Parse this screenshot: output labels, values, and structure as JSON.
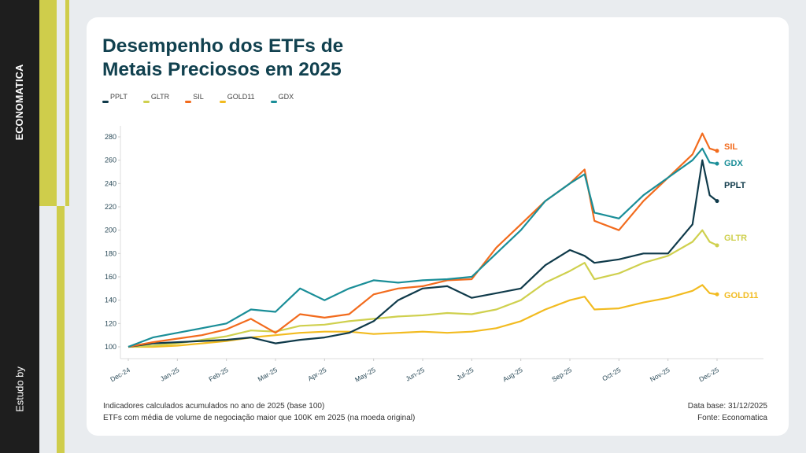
{
  "sidebar": {
    "brand": "ECONOMATICA",
    "credit": "Estudo by",
    "accent": "#cfcd4b"
  },
  "header": {
    "title_line1": "Desempenho dos ETFs de",
    "title_line2": "Metais Preciosos em 2025"
  },
  "footer": {
    "note1": "Indicadores calculados acumulados no ano de 2025 (base 100)",
    "note2": "ETFs com média de volume de negociação maior que 100K em 2025 (na moeda original)",
    "date": "Data base: 31/12/2025",
    "source": "Fonte: Economatica"
  },
  "chart_data": {
    "type": "line",
    "title": "Desempenho dos ETFs de Metais Preciosos em 2025",
    "xlabel": "",
    "ylabel": "",
    "ylim": [
      90,
      290
    ],
    "yticks": [
      100,
      120,
      140,
      160,
      180,
      200,
      220,
      240,
      260,
      280
    ],
    "x_tick_labels": [
      "Dec-24",
      "Jan-25",
      "Feb-25",
      "Mar-25",
      "Apr-25",
      "May-25",
      "Jun-25",
      "Jul-25",
      "Aug-25",
      "Sep-25",
      "Oct-25",
      "Nov-25",
      "Dec-25"
    ],
    "x": [
      0,
      0.5,
      1,
      1.5,
      2,
      2.5,
      3,
      3.5,
      4,
      4.5,
      5,
      5.5,
      6,
      6.5,
      7,
      7.5,
      8,
      8.5,
      9,
      9.3,
      9.5,
      10,
      10.5,
      11,
      11.5,
      11.7,
      11.85,
      12
    ],
    "legend_position": "top-left",
    "grid": false,
    "series": [
      {
        "name": "PPLT",
        "color": "#0f3a4a",
        "values": [
          100,
          103,
          104,
          105,
          106,
          108,
          103,
          106,
          108,
          112,
          122,
          140,
          150,
          152,
          142,
          146,
          150,
          170,
          183,
          178,
          172,
          175,
          180,
          180,
          205,
          260,
          230,
          225
        ]
      },
      {
        "name": "GLTR",
        "color": "#cfd04e",
        "values": [
          100,
          101,
          103,
          106,
          109,
          114,
          113,
          118,
          119,
          122,
          124,
          126,
          127,
          129,
          128,
          132,
          140,
          155,
          165,
          172,
          158,
          163,
          172,
          178,
          190,
          200,
          190,
          187
        ]
      },
      {
        "name": "SIL",
        "color": "#f26b1d",
        "values": [
          100,
          104,
          107,
          110,
          115,
          124,
          112,
          128,
          125,
          128,
          145,
          150,
          152,
          157,
          158,
          185,
          205,
          225,
          240,
          252,
          208,
          200,
          225,
          245,
          265,
          283,
          270,
          268
        ]
      },
      {
        "name": "GOLD11",
        "color": "#f2bb20",
        "values": [
          100,
          100,
          101,
          103,
          105,
          108,
          110,
          112,
          113,
          113,
          111,
          112,
          113,
          112,
          113,
          116,
          122,
          132,
          140,
          143,
          132,
          133,
          138,
          142,
          148,
          153,
          146,
          145
        ]
      },
      {
        "name": "GDX",
        "color": "#1a8e98",
        "values": [
          100,
          108,
          112,
          116,
          120,
          132,
          130,
          150,
          140,
          150,
          157,
          155,
          157,
          158,
          160,
          180,
          200,
          225,
          240,
          248,
          215,
          210,
          230,
          245,
          260,
          270,
          258,
          257
        ]
      }
    ]
  }
}
